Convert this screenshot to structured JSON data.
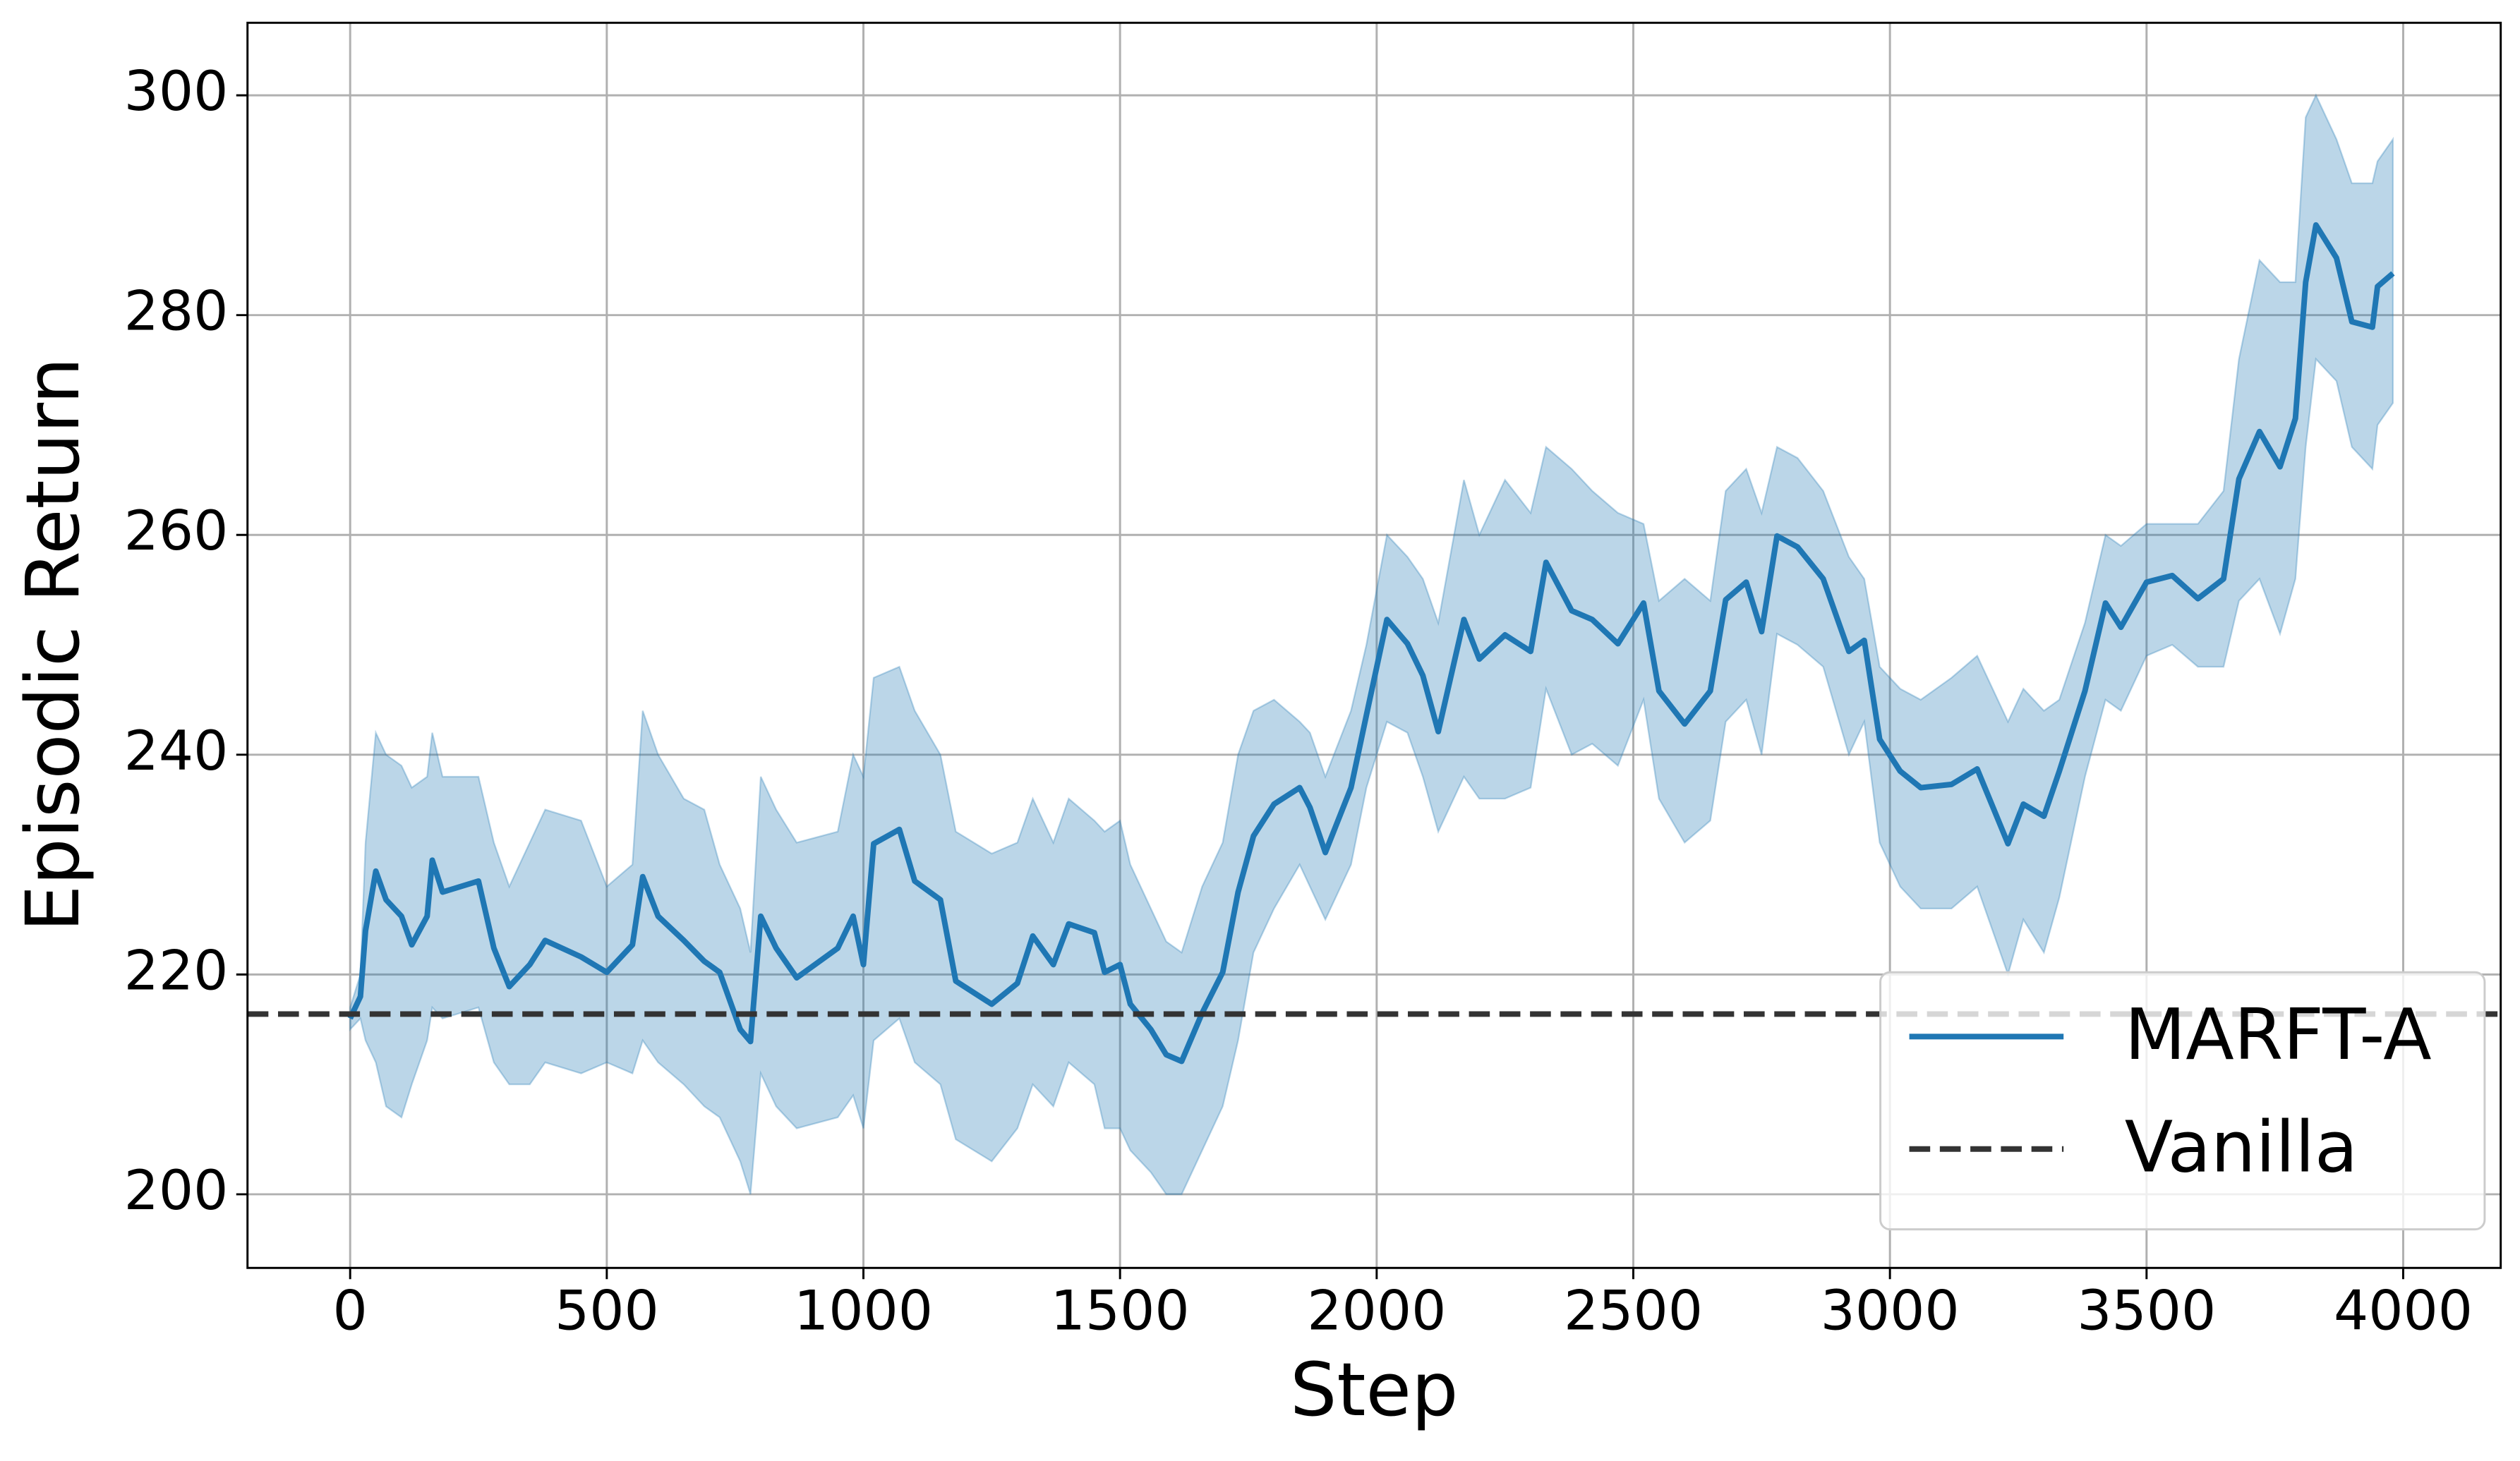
{
  "chart_data": {
    "type": "line",
    "xlabel": "Step",
    "ylabel": "Episodic Return",
    "x": [
      0,
      20,
      30,
      50,
      70,
      100,
      120,
      150,
      160,
      180,
      250,
      280,
      310,
      350,
      380,
      450,
      500,
      550,
      570,
      600,
      650,
      690,
      720,
      760,
      780,
      800,
      830,
      870,
      950,
      980,
      1000,
      1020,
      1070,
      1100,
      1150,
      1180,
      1250,
      1300,
      1330,
      1370,
      1400,
      1450,
      1470,
      1500,
      1520,
      1560,
      1590,
      1620,
      1660,
      1700,
      1730,
      1760,
      1800,
      1850,
      1870,
      1900,
      1950,
      1980,
      2020,
      2060,
      2090,
      2120,
      2170,
      2200,
      2250,
      2300,
      2330,
      2380,
      2420,
      2470,
      2520,
      2550,
      2600,
      2650,
      2680,
      2720,
      2750,
      2780,
      2820,
      2870,
      2920,
      2950,
      2980,
      3020,
      3060,
      3120,
      3170,
      3230,
      3260,
      3300,
      3330,
      3380,
      3420,
      3450,
      3500,
      3550,
      3600,
      3650,
      3680,
      3720,
      3760,
      3790,
      3810,
      3830,
      3870,
      3900,
      3940,
      3950,
      3980
    ],
    "series": [
      {
        "name": "MARFT-A",
        "color": "#1f77b4",
        "values": [
          216,
          218,
          224,
          229.4,
          226.8,
          225.3,
          222.7,
          225.3,
          230.4,
          227.5,
          228.5,
          222.4,
          218.9,
          220.9,
          223.1,
          221.6,
          220.2,
          222.7,
          228.9,
          225.3,
          223.1,
          221.2,
          220.2,
          215,
          213.9,
          225.3,
          222.4,
          219.7,
          222.4,
          225.3,
          220.9,
          231.9,
          233.2,
          228.5,
          226.8,
          219.4,
          217.3,
          219.2,
          223.5,
          220.9,
          224.6,
          223.8,
          220.2,
          220.9,
          217.3,
          215,
          212.7,
          212.1,
          216.5,
          220.2,
          227.5,
          232.6,
          235.5,
          237,
          235.2,
          231.1,
          237,
          243.6,
          252.3,
          250.1,
          247.2,
          242.1,
          252.3,
          248.7,
          250.9,
          249.4,
          257.5,
          253.1,
          252.3,
          250.1,
          253.8,
          245.8,
          242.8,
          245.8,
          254.1,
          255.7,
          251.2,
          259.9,
          258.9,
          256,
          249.4,
          250.4,
          241.4,
          238.5,
          237,
          237.3,
          238.7,
          231.9,
          235.5,
          234.4,
          238.5,
          245.8,
          253.8,
          251.6,
          255.7,
          256.3,
          254.2,
          256,
          265.1,
          269.4,
          266.2,
          270.6,
          283,
          288.2,
          285.2,
          279.4,
          278.9,
          282.6,
          283.8
        ],
        "upper": [
          217,
          220,
          232,
          242,
          240,
          239,
          237,
          238,
          242,
          238,
          238,
          232,
          228,
          232,
          235,
          234,
          228,
          230,
          244,
          240,
          236,
          235,
          230,
          226,
          222,
          238,
          235,
          232,
          233,
          240,
          238,
          247,
          248,
          244,
          240,
          233,
          231,
          232,
          236,
          232,
          236,
          234,
          233,
          234,
          230,
          226,
          223,
          222,
          228,
          232,
          240,
          244,
          245,
          243,
          242,
          238,
          244,
          250,
          260,
          258,
          256,
          252,
          265,
          260,
          265,
          262,
          268,
          266,
          264,
          262,
          261,
          254,
          256,
          254,
          264,
          266,
          262,
          268,
          267,
          264,
          258,
          256,
          248,
          246,
          245,
          247,
          249,
          243,
          246,
          244,
          245,
          252,
          260,
          259,
          261,
          261,
          261,
          264,
          276,
          285,
          283,
          283,
          298,
          300,
          296,
          292,
          292,
          294,
          296
        ],
        "lower": [
          215,
          216,
          214,
          212,
          208,
          207,
          210,
          214,
          217,
          216,
          217,
          212,
          210,
          210,
          212,
          211,
          212,
          211,
          214,
          212,
          210,
          208,
          207,
          203,
          200,
          211,
          208,
          206,
          207,
          209,
          206,
          214,
          216,
          212,
          210,
          205,
          203,
          206,
          210,
          208,
          212,
          210,
          206,
          206,
          204,
          202,
          200,
          200,
          204,
          208,
          214,
          222,
          226,
          230,
          228,
          225,
          230,
          237,
          243,
          242,
          238,
          233,
          238,
          236,
          236,
          237,
          246,
          240,
          241,
          239,
          245,
          236,
          232,
          234,
          243,
          245,
          240,
          251,
          250,
          248,
          240,
          243,
          232,
          228,
          226,
          226,
          228,
          220,
          225,
          222,
          227,
          238,
          245,
          244,
          249,
          250,
          248,
          248,
          254,
          256,
          251,
          256,
          268,
          276,
          274,
          268,
          266,
          270,
          272
        ]
      }
    ],
    "hlines": [
      {
        "name": "Vanilla",
        "value": 216.4,
        "color": "#333333",
        "style": "dashed"
      }
    ],
    "xlim": [
      -200,
      4190
    ],
    "ylim": [
      193.3,
      306.6
    ],
    "xticks": [
      0,
      500,
      1000,
      1500,
      2000,
      2500,
      3000,
      3500,
      4000
    ],
    "yticks": [
      200,
      220,
      240,
      260,
      280,
      300
    ],
    "grid": true,
    "legend": "lower right"
  }
}
